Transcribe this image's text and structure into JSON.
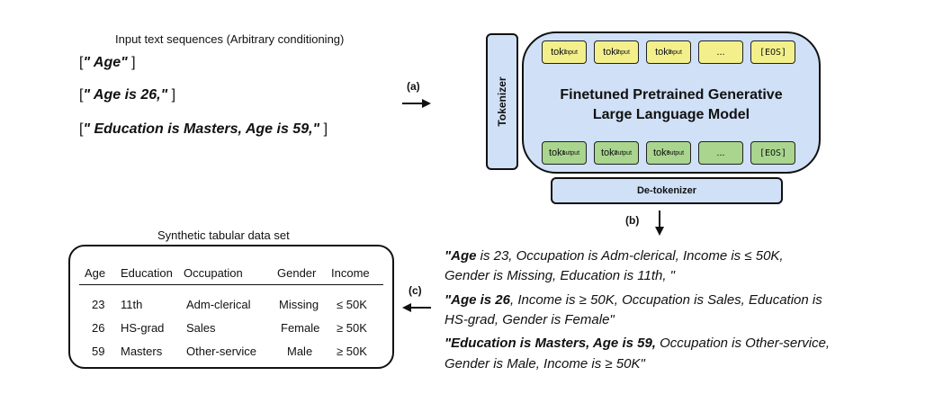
{
  "input": {
    "caption": "Input text sequences (Arbitrary conditioning)",
    "sequences": [
      {
        "open": "[",
        "text": "\" Age\"",
        "close": "]"
      },
      {
        "open": "[",
        "text": "\" Age is 26,\"",
        "close": "]"
      },
      {
        "open": "[",
        "text": "\" Education is Masters, Age is 59,\"",
        "close": "]"
      }
    ]
  },
  "arrows": {
    "a": "(a)",
    "b": "(b)",
    "c": "(c)"
  },
  "tokenizer": {
    "label": "Tokenizer"
  },
  "llm": {
    "title_line1": "Finetuned Pretrained Generative",
    "title_line2": "Large Language Model"
  },
  "tokens": {
    "input": [
      {
        "base": "tok",
        "sub": "1",
        "sup": "input"
      },
      {
        "base": "tok",
        "sub": "2",
        "sup": "input"
      },
      {
        "base": "tok",
        "sub": "3",
        "sup": "input"
      },
      {
        "base": "...",
        "sub": "",
        "sup": ""
      },
      {
        "base": "[EOS]",
        "sub": "",
        "sup": ""
      }
    ],
    "output": [
      {
        "base": "tok",
        "sub": "1",
        "sup": "output"
      },
      {
        "base": "tok",
        "sub": "2",
        "sup": "output"
      },
      {
        "base": "tok",
        "sub": "3",
        "sup": "output"
      },
      {
        "base": "...",
        "sub": "",
        "sup": ""
      },
      {
        "base": "[EOS]",
        "sub": "",
        "sup": ""
      }
    ]
  },
  "detokenizer": {
    "label": "De-tokenizer"
  },
  "output_text": {
    "lines": [
      {
        "bold": "\"Age",
        "rest": " is 23, Occupation is Adm-clerical, Income is  ≤ 50K,"
      },
      {
        "bold": "",
        "rest": "Gender is Missing, Education is 11th, \""
      },
      {
        "bold": "\"Age is 26",
        "rest": ", Income is  ≥ 50K, Occupation is Sales, Education is"
      },
      {
        "bold": "",
        "rest": "HS-grad, Gender is Female\""
      },
      {
        "bold": "\"Education is Masters, Age is 59,",
        "rest": " Occupation is Other-service,"
      },
      {
        "bold": "",
        "rest": "Gender is Male, Income is  ≥ 50K\""
      }
    ]
  },
  "table": {
    "caption": "Synthetic tabular data set",
    "headers": [
      "Age",
      "Education",
      "Occupation",
      "Gender",
      "Income"
    ],
    "rows": [
      [
        "23",
        "11th",
        "Adm-clerical",
        "Missing",
        "≤ 50K"
      ],
      [
        "26",
        "HS-grad",
        "Sales",
        "Female",
        "≥ 50K"
      ],
      [
        "59",
        "Masters",
        "Other-service",
        "Male",
        "≥ 50K"
      ]
    ]
  }
}
